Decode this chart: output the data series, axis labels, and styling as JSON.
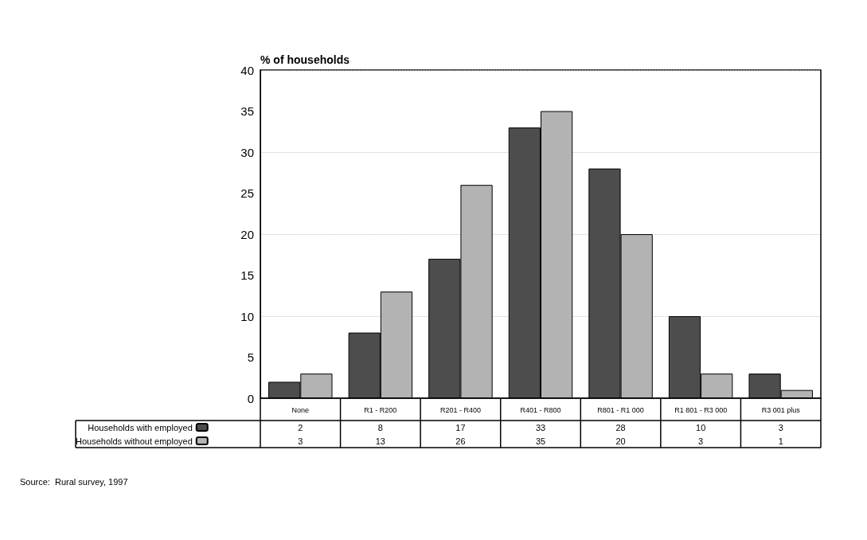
{
  "chart_data": {
    "type": "bar",
    "ylabel": "% of households",
    "categories": [
      "None",
      "R1 - R200",
      "R201 - R400",
      "R401 - R800",
      "R801 - R1 000",
      "R1 801 - R3 000",
      "R3 001 plus"
    ],
    "series": [
      {
        "name": "Households with employed",
        "color": "#4d4d4d",
        "values": [
          2,
          8,
          17,
          33,
          28,
          10,
          3
        ]
      },
      {
        "name": "Households without employed",
        "color": "#b3b3b3",
        "values": [
          3,
          13,
          26,
          35,
          20,
          3,
          1
        ]
      }
    ],
    "ylim": [
      0,
      40
    ],
    "yticks": [
      0,
      5,
      10,
      15,
      20,
      25,
      30,
      35,
      40
    ],
    "grid": "y",
    "legend": "bottom left",
    "data_labels": true,
    "annotations": [
      "Source:  Rural survey, 1997"
    ]
  }
}
